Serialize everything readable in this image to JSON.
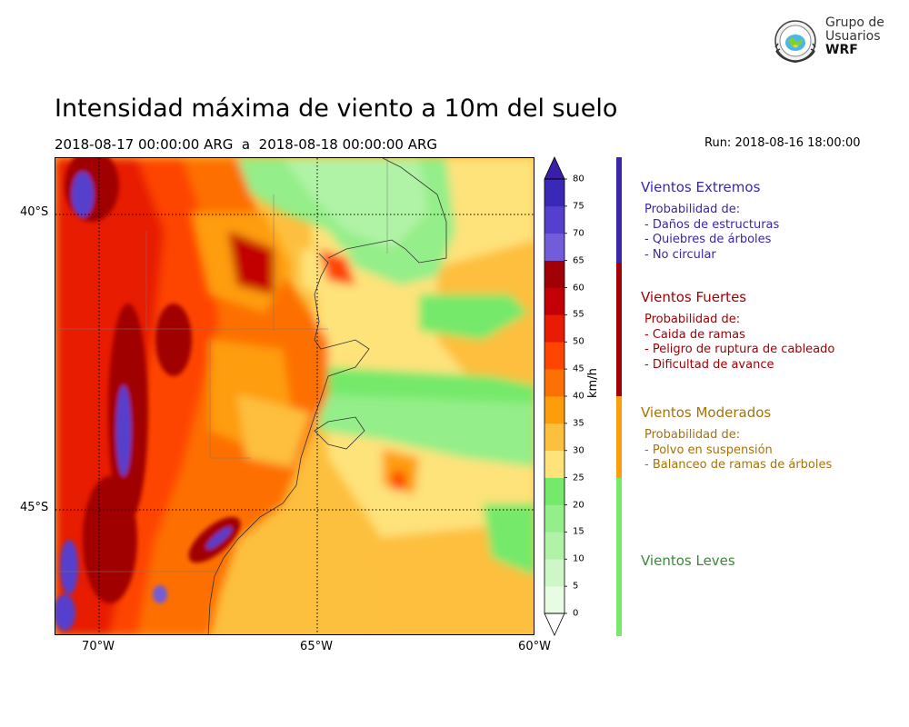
{
  "title": "Intensidad máxima de viento a 10m del suelo",
  "period": "2018-08-17 00:00:00 ARG  a  2018-08-18 00:00:00 ARG",
  "run": "Run: 2018-08-16 18:00:00",
  "logo": {
    "line1": "Grupo de",
    "line2": "Usuarios",
    "line3": "WRF"
  },
  "axes": {
    "lat_labels": [
      "40°S",
      "45°S"
    ],
    "lon_labels": [
      "70°W",
      "65°W",
      "60°W"
    ]
  },
  "colorbar": {
    "unit": "km/h",
    "ticks": [
      "80",
      "75",
      "70",
      "65",
      "60",
      "55",
      "50",
      "45",
      "40",
      "35",
      "30",
      "25",
      "20",
      "15",
      "10",
      "5",
      "0"
    ],
    "colors": [
      "#e8fbe3",
      "#cdf7c6",
      "#b1f3a6",
      "#94ee89",
      "#75e96a",
      "#fee27a",
      "#fdbf3e",
      "#fe9d0b",
      "#fd7004",
      "#fe4500",
      "#e81c04",
      "#c30005",
      "#a10006",
      "#735cd9",
      "#5540cd",
      "#3a28b7"
    ],
    "over_color": "#3a1da8"
  },
  "categories": [
    {
      "title": "Vientos Extremos",
      "color": "#3926ad",
      "items": [
        "Probabilidad de:",
        "- Daños de estructuras",
        "- Quiebres de árboles",
        "- No circular"
      ]
    },
    {
      "title": "Vientos Fuertes",
      "color": "#a30005",
      "items": [
        "Probabilidad de:",
        "- Caida de ramas",
        "- Peligro de ruptura de cableado",
        "- Dificultad de avance"
      ]
    },
    {
      "title": "Vientos Moderados",
      "color": "#a8720a",
      "bar_color": "#fd9d0c",
      "items": [
        "Probabilidad de:",
        "- Polvo en suspensión",
        "- Balanceo de ramas de árboles"
      ]
    },
    {
      "title": "Vientos Leves",
      "color": "#3a8a3a",
      "bar_color": "#77ea6b",
      "items": []
    }
  ]
}
